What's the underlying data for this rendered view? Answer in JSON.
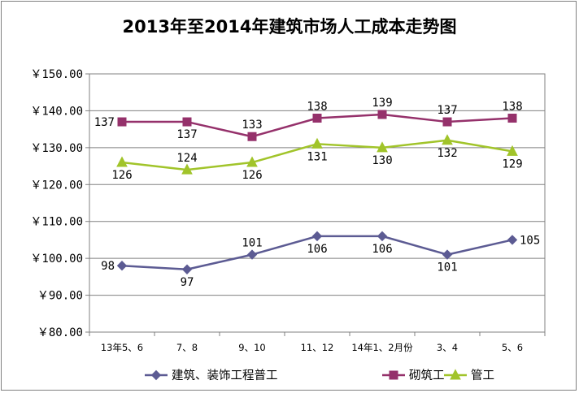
{
  "chart_data": {
    "type": "line",
    "title": "2013年至2014年建筑市场人工成本走势图",
    "xlabel": "",
    "ylabel": "",
    "categories": [
      "13年5、6",
      "7、8",
      "9、10",
      "11、12",
      "14年1、2月份",
      "3、4",
      "5、6"
    ],
    "ylim": [
      80,
      150
    ],
    "ytick_values": [
      80,
      90,
      100,
      110,
      120,
      130,
      140,
      150
    ],
    "ytick_labels": [
      "￥80.00",
      "￥90.00",
      "￥100.00",
      "￥110.00",
      "￥120.00",
      "￥130.00",
      "￥140.00",
      "￥150.00"
    ],
    "grid": true,
    "legend_position": "bottom",
    "series": [
      {
        "name": "建筑、装饰工程普工",
        "values": [
          98,
          97,
          101,
          106,
          106,
          101,
          105
        ],
        "color": "#5C5B93",
        "marker": "diamond",
        "labels": [
          "98",
          "97",
          "101",
          "106",
          "106",
          "101",
          "105"
        ]
      },
      {
        "name": "砌筑工",
        "values": [
          137,
          137,
          133,
          138,
          139,
          137,
          138
        ],
        "color": "#95316B",
        "marker": "square",
        "labels": [
          "137",
          "137",
          "133",
          "138",
          "139",
          "137",
          "138"
        ]
      },
      {
        "name": "管工",
        "values": [
          126,
          124,
          126,
          131,
          130,
          132,
          129
        ],
        "color": "#A1C42A",
        "marker": "triangle",
        "labels": [
          "126",
          "124",
          "126",
          "131",
          "130",
          "132",
          "129"
        ]
      }
    ]
  }
}
